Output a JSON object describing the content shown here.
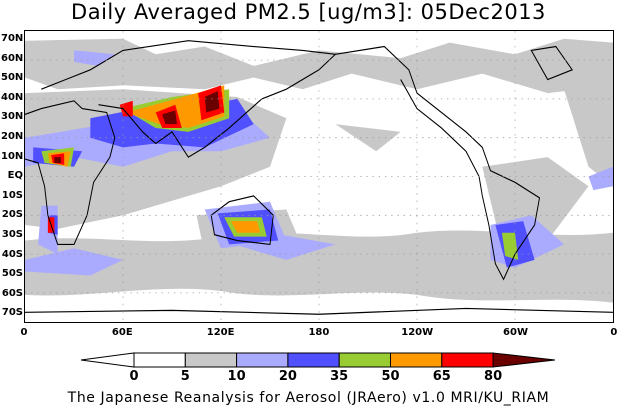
{
  "title": "Daily Averaged PM2.5 [ug/m3]: 05Dec2013",
  "lat_labels": [
    "70N",
    "60N",
    "50N",
    "40N",
    "30N",
    "20N",
    "10N",
    "EQ",
    "10S",
    "20S",
    "30S",
    "40S",
    "50S",
    "60S",
    "70S"
  ],
  "lon_labels": [
    "0",
    "60E",
    "120E",
    "180",
    "120W",
    "60W",
    "0"
  ],
  "colorbar": {
    "levels": [
      "0",
      "5",
      "10",
      "20",
      "35",
      "50",
      "65",
      "80"
    ],
    "colors": [
      "#ffffff",
      "#ffffff",
      "#c8c8c8",
      "#aaaaff",
      "#5050ff",
      "#99cc33",
      "#ff9900",
      "#ff0000",
      "#6a0000"
    ]
  },
  "credit": "The Japanese Reanalysis for Aerosol (JRAero) v1.0 MRI/KU_RIAM"
}
